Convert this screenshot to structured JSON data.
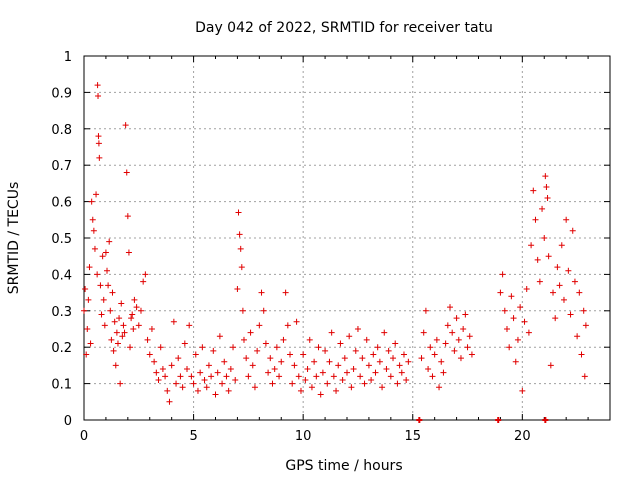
{
  "chart_data": {
    "type": "scatter",
    "title": "Day 042 of 2022, SRMTID for receiver tatu",
    "xlabel": "GPS time / hours",
    "ylabel": "SRMTID / TECUs",
    "xlim": [
      0,
      24
    ],
    "ylim": [
      0,
      1
    ],
    "xticks": [
      0,
      5,
      10,
      15,
      20
    ],
    "yticks": [
      0,
      0.1,
      0.2,
      0.3,
      0.4,
      0.5,
      0.6,
      0.7,
      0.8,
      0.9,
      1
    ],
    "xtick_labels": [
      "0",
      "5",
      "10",
      "15",
      "20"
    ],
    "ytick_labels": [
      "0",
      "0.1",
      "0.2",
      "0.3",
      "0.4",
      "0.5",
      "0.6",
      "0.7",
      "0.8",
      "0.9",
      "1"
    ],
    "grid": true,
    "marker": "+",
    "color": "#e00000",
    "series": [
      {
        "name": "SRMTID",
        "points": [
          [
            0.0,
            0.3
          ],
          [
            0.05,
            0.36
          ],
          [
            0.1,
            0.18
          ],
          [
            0.15,
            0.25
          ],
          [
            0.2,
            0.33
          ],
          [
            0.25,
            0.42
          ],
          [
            0.3,
            0.21
          ],
          [
            0.35,
            0.6
          ],
          [
            0.4,
            0.55
          ],
          [
            0.45,
            0.52
          ],
          [
            0.5,
            0.47
          ],
          [
            0.55,
            0.62
          ],
          [
            0.6,
            0.4
          ],
          [
            0.62,
            0.92
          ],
          [
            0.64,
            0.89
          ],
          [
            0.66,
            0.78
          ],
          [
            0.68,
            0.76
          ],
          [
            0.7,
            0.72
          ],
          [
            0.75,
            0.37
          ],
          [
            0.8,
            0.29
          ],
          [
            0.85,
            0.45
          ],
          [
            0.9,
            0.33
          ],
          [
            0.95,
            0.26
          ],
          [
            1.0,
            0.46
          ],
          [
            1.05,
            0.41
          ],
          [
            1.1,
            0.37
          ],
          [
            1.15,
            0.49
          ],
          [
            1.2,
            0.3
          ],
          [
            1.25,
            0.22
          ],
          [
            1.3,
            0.35
          ],
          [
            1.35,
            0.19
          ],
          [
            1.4,
            0.27
          ],
          [
            1.45,
            0.15
          ],
          [
            1.5,
            0.24
          ],
          [
            1.55,
            0.21
          ],
          [
            1.6,
            0.28
          ],
          [
            1.65,
            0.1
          ],
          [
            1.7,
            0.32
          ],
          [
            1.75,
            0.23
          ],
          [
            1.8,
            0.26
          ],
          [
            1.85,
            0.24
          ],
          [
            1.9,
            0.81
          ],
          [
            1.95,
            0.68
          ],
          [
            2.0,
            0.56
          ],
          [
            2.05,
            0.46
          ],
          [
            2.1,
            0.2
          ],
          [
            2.15,
            0.28
          ],
          [
            2.2,
            0.29
          ],
          [
            2.25,
            0.25
          ],
          [
            2.3,
            0.33
          ],
          [
            2.4,
            0.31
          ],
          [
            2.5,
            0.26
          ],
          [
            2.6,
            0.3
          ],
          [
            2.7,
            0.38
          ],
          [
            2.8,
            0.4
          ],
          [
            2.9,
            0.22
          ],
          [
            3.0,
            0.18
          ],
          [
            3.1,
            0.25
          ],
          [
            3.2,
            0.16
          ],
          [
            3.3,
            0.13
          ],
          [
            3.4,
            0.11
          ],
          [
            3.5,
            0.2
          ],
          [
            3.6,
            0.14
          ],
          [
            3.7,
            0.12
          ],
          [
            3.8,
            0.08
          ],
          [
            3.9,
            0.05
          ],
          [
            4.0,
            0.15
          ],
          [
            4.1,
            0.27
          ],
          [
            4.2,
            0.1
          ],
          [
            4.3,
            0.17
          ],
          [
            4.4,
            0.12
          ],
          [
            4.5,
            0.09
          ],
          [
            4.6,
            0.21
          ],
          [
            4.7,
            0.14
          ],
          [
            4.8,
            0.26
          ],
          [
            4.9,
            0.12
          ],
          [
            5.0,
            0.1
          ],
          [
            5.1,
            0.18
          ],
          [
            5.2,
            0.08
          ],
          [
            5.3,
            0.13
          ],
          [
            5.4,
            0.2
          ],
          [
            5.5,
            0.11
          ],
          [
            5.6,
            0.09
          ],
          [
            5.7,
            0.15
          ],
          [
            5.8,
            0.12
          ],
          [
            5.9,
            0.19
          ],
          [
            6.0,
            0.07
          ],
          [
            6.1,
            0.13
          ],
          [
            6.2,
            0.23
          ],
          [
            6.3,
            0.1
          ],
          [
            6.4,
            0.16
          ],
          [
            6.5,
            0.12
          ],
          [
            6.6,
            0.08
          ],
          [
            6.7,
            0.14
          ],
          [
            6.8,
            0.2
          ],
          [
            6.9,
            0.11
          ],
          [
            7.0,
            0.36
          ],
          [
            7.05,
            0.57
          ],
          [
            7.1,
            0.51
          ],
          [
            7.15,
            0.47
          ],
          [
            7.2,
            0.42
          ],
          [
            7.25,
            0.3
          ],
          [
            7.3,
            0.22
          ],
          [
            7.4,
            0.17
          ],
          [
            7.5,
            0.12
          ],
          [
            7.6,
            0.24
          ],
          [
            7.7,
            0.15
          ],
          [
            7.8,
            0.09
          ],
          [
            7.9,
            0.19
          ],
          [
            8.0,
            0.26
          ],
          [
            8.1,
            0.35
          ],
          [
            8.2,
            0.3
          ],
          [
            8.3,
            0.21
          ],
          [
            8.4,
            0.13
          ],
          [
            8.5,
            0.17
          ],
          [
            8.6,
            0.1
          ],
          [
            8.7,
            0.14
          ],
          [
            8.8,
            0.2
          ],
          [
            8.9,
            0.12
          ],
          [
            9.0,
            0.16
          ],
          [
            9.1,
            0.22
          ],
          [
            9.2,
            0.35
          ],
          [
            9.3,
            0.26
          ],
          [
            9.4,
            0.18
          ],
          [
            9.5,
            0.1
          ],
          [
            9.6,
            0.15
          ],
          [
            9.7,
            0.27
          ],
          [
            9.8,
            0.12
          ],
          [
            9.9,
            0.08
          ],
          [
            10.0,
            0.18
          ],
          [
            10.1,
            0.11
          ],
          [
            10.2,
            0.14
          ],
          [
            10.3,
            0.22
          ],
          [
            10.4,
            0.09
          ],
          [
            10.5,
            0.16
          ],
          [
            10.6,
            0.12
          ],
          [
            10.7,
            0.2
          ],
          [
            10.8,
            0.07
          ],
          [
            10.9,
            0.13
          ],
          [
            11.0,
            0.19
          ],
          [
            11.1,
            0.1
          ],
          [
            11.2,
            0.16
          ],
          [
            11.3,
            0.24
          ],
          [
            11.4,
            0.12
          ],
          [
            11.5,
            0.08
          ],
          [
            11.6,
            0.15
          ],
          [
            11.7,
            0.21
          ],
          [
            11.8,
            0.11
          ],
          [
            11.9,
            0.17
          ],
          [
            12.0,
            0.13
          ],
          [
            12.1,
            0.23
          ],
          [
            12.2,
            0.09
          ],
          [
            12.3,
            0.14
          ],
          [
            12.4,
            0.19
          ],
          [
            12.5,
            0.25
          ],
          [
            12.6,
            0.12
          ],
          [
            12.7,
            0.17
          ],
          [
            12.8,
            0.1
          ],
          [
            12.9,
            0.22
          ],
          [
            13.0,
            0.15
          ],
          [
            13.1,
            0.11
          ],
          [
            13.2,
            0.18
          ],
          [
            13.3,
            0.13
          ],
          [
            13.4,
            0.2
          ],
          [
            13.5,
            0.16
          ],
          [
            13.6,
            0.09
          ],
          [
            13.7,
            0.24
          ],
          [
            13.8,
            0.14
          ],
          [
            13.9,
            0.19
          ],
          [
            14.0,
            0.12
          ],
          [
            14.1,
            0.17
          ],
          [
            14.2,
            0.21
          ],
          [
            14.3,
            0.1
          ],
          [
            14.4,
            0.15
          ],
          [
            14.5,
            0.13
          ],
          [
            14.6,
            0.18
          ],
          [
            14.7,
            0.11
          ],
          [
            14.8,
            0.16
          ],
          [
            15.4,
            0.17
          ],
          [
            15.5,
            0.24
          ],
          [
            15.6,
            0.3
          ],
          [
            15.7,
            0.14
          ],
          [
            15.8,
            0.2
          ],
          [
            15.9,
            0.12
          ],
          [
            16.0,
            0.18
          ],
          [
            16.1,
            0.22
          ],
          [
            16.2,
            0.09
          ],
          [
            16.3,
            0.16
          ],
          [
            16.4,
            0.13
          ],
          [
            16.5,
            0.21
          ],
          [
            16.6,
            0.26
          ],
          [
            16.7,
            0.31
          ],
          [
            16.8,
            0.24
          ],
          [
            16.9,
            0.19
          ],
          [
            17.0,
            0.28
          ],
          [
            17.1,
            0.22
          ],
          [
            17.2,
            0.17
          ],
          [
            17.3,
            0.25
          ],
          [
            17.4,
            0.29
          ],
          [
            17.5,
            0.2
          ],
          [
            17.6,
            0.23
          ],
          [
            17.7,
            0.18
          ],
          [
            19.0,
            0.35
          ],
          [
            19.1,
            0.4
          ],
          [
            19.2,
            0.3
          ],
          [
            19.3,
            0.25
          ],
          [
            19.4,
            0.2
          ],
          [
            19.5,
            0.34
          ],
          [
            19.6,
            0.28
          ],
          [
            19.7,
            0.16
          ],
          [
            19.8,
            0.22
          ],
          [
            19.9,
            0.31
          ],
          [
            20.0,
            0.08
          ],
          [
            20.1,
            0.27
          ],
          [
            20.2,
            0.36
          ],
          [
            20.3,
            0.24
          ],
          [
            20.4,
            0.48
          ],
          [
            20.5,
            0.63
          ],
          [
            20.6,
            0.55
          ],
          [
            20.7,
            0.44
          ],
          [
            20.8,
            0.38
          ],
          [
            20.9,
            0.58
          ],
          [
            21.0,
            0.5
          ],
          [
            21.05,
            0.67
          ],
          [
            21.1,
            0.64
          ],
          [
            21.15,
            0.61
          ],
          [
            21.2,
            0.45
          ],
          [
            21.3,
            0.15
          ],
          [
            21.4,
            0.35
          ],
          [
            21.5,
            0.28
          ],
          [
            21.6,
            0.42
          ],
          [
            21.7,
            0.37
          ],
          [
            21.8,
            0.48
          ],
          [
            21.9,
            0.33
          ],
          [
            22.0,
            0.55
          ],
          [
            22.1,
            0.41
          ],
          [
            22.2,
            0.29
          ],
          [
            22.3,
            0.52
          ],
          [
            22.4,
            0.38
          ],
          [
            22.5,
            0.23
          ],
          [
            22.6,
            0.35
          ],
          [
            22.7,
            0.18
          ],
          [
            22.8,
            0.3
          ],
          [
            22.85,
            0.12
          ],
          [
            22.9,
            0.26
          ]
        ]
      }
    ],
    "zero_markers": [
      15.3,
      18.9,
      21.05
    ]
  }
}
